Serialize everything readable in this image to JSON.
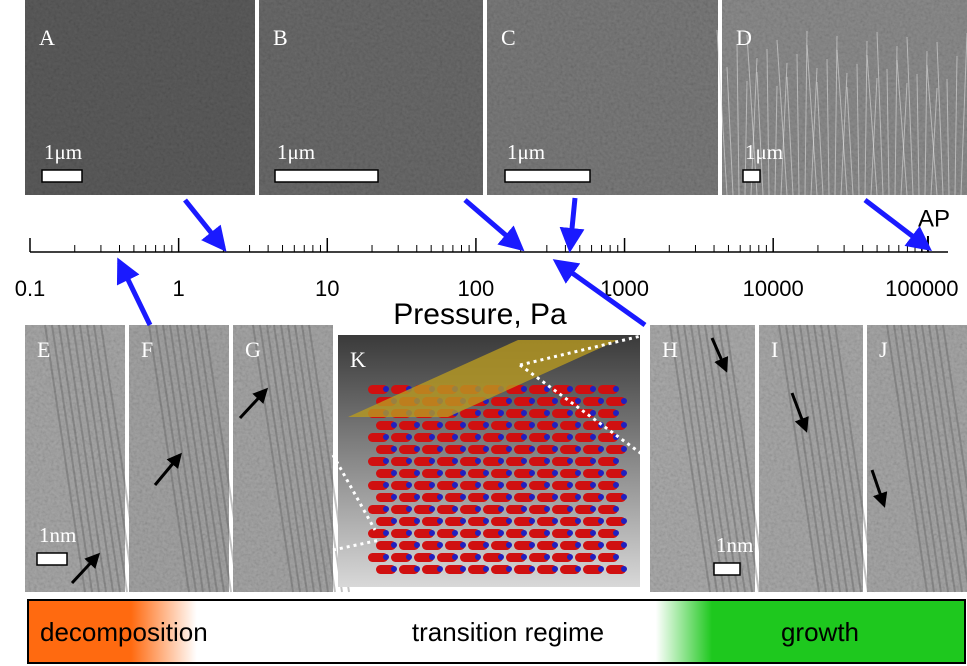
{
  "figure": {
    "axis": {
      "label": "Pressure, Pa",
      "scale": "log",
      "xlim": [
        0.1,
        150000
      ],
      "xticks": [
        0.1,
        1,
        10,
        100,
        1000,
        10000,
        100000
      ],
      "marker": {
        "label": "AP",
        "value": 110000
      }
    },
    "panels": [
      {
        "label": "A",
        "scale_bar": "1μm",
        "pressure": 2
      },
      {
        "label": "B",
        "scale_bar": "1μm",
        "pressure": 200
      },
      {
        "label": "C",
        "scale_bar": "1μm",
        "pressure": 430
      },
      {
        "label": "D",
        "scale_bar": "1μm",
        "pressure": 110000
      },
      {
        "label": "E",
        "scale_bar": "1nm",
        "pressure": 0.4
      },
      {
        "label": "F"
      },
      {
        "label": "G"
      },
      {
        "label": "K"
      },
      {
        "label": "H",
        "scale_bar": "1nm",
        "pressure": 350
      },
      {
        "label": "I"
      },
      {
        "label": "J"
      }
    ],
    "regimes": [
      "decomposition",
      "transition regime",
      "growth"
    ]
  }
}
